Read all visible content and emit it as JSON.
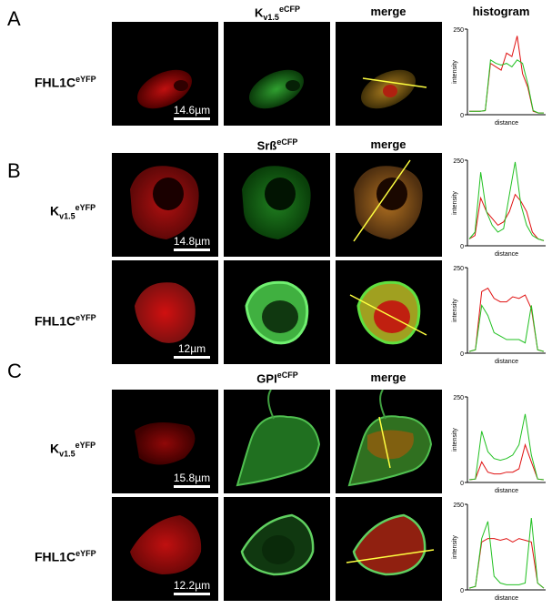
{
  "panels": {
    "a": {
      "letter": "A"
    },
    "b": {
      "letter": "B"
    },
    "c": {
      "letter": "C"
    }
  },
  "headers": {
    "a_col2": {
      "base": "K",
      "sub": "v1.5",
      "sup": "eCFP"
    },
    "a_col3": "merge",
    "a_col4": "histogram",
    "b_col2": {
      "base": "Srß",
      "sup": "eCFP"
    },
    "b_col3": "merge",
    "c_col2": {
      "base": "GPI",
      "sup": "eCFP"
    },
    "c_col3": "merge"
  },
  "rows": [
    {
      "label": {
        "base": "FHL1C",
        "sup": "eYFP"
      },
      "scale": "14.6µm"
    },
    {
      "label": {
        "base": "K",
        "sub": "v1.5",
        "sup": "eYFP"
      },
      "scale": "14.8µm"
    },
    {
      "label": {
        "base": "FHL1C",
        "sup": "eYFP"
      },
      "scale": "12µm"
    },
    {
      "label": {
        "base": "K",
        "sub": "v1.5",
        "sup": "eYFP"
      },
      "scale": "15.8µm"
    },
    {
      "label": {
        "base": "FHL1C",
        "sup": "eYFP"
      },
      "scale": "12.2µm"
    }
  ],
  "histogram_axes": {
    "ymax": "250",
    "ymin": "0",
    "ylabel": "intensity",
    "xlabel": "distance"
  },
  "colors": {
    "red_channel": "#e01010",
    "green_channel": "#20c020",
    "line": "#ffff40"
  },
  "chart_data": [
    {
      "type": "line",
      "ylabel": "intensity",
      "xlabel": "distance",
      "ylim": [
        0,
        250
      ],
      "series": [
        {
          "values": [
            10,
            10,
            10,
            12,
            150,
            140,
            130,
            180,
            170,
            230,
            120,
            80,
            10,
            5,
            5
          ]
        },
        {
          "values": [
            10,
            10,
            10,
            12,
            160,
            150,
            145,
            150,
            140,
            160,
            150,
            90,
            12,
            5,
            5
          ]
        }
      ]
    },
    {
      "type": "line",
      "ylabel": "intensity",
      "xlabel": "distance",
      "ylim": [
        0,
        250
      ],
      "series": [
        {
          "values": [
            20,
            30,
            140,
            100,
            80,
            60,
            70,
            100,
            150,
            130,
            100,
            40,
            20,
            15
          ]
        },
        {
          "values": [
            20,
            40,
            215,
            100,
            60,
            40,
            50,
            150,
            245,
            120,
            60,
            30,
            20,
            15
          ]
        }
      ]
    },
    {
      "type": "line",
      "ylabel": "intensity",
      "xlabel": "distance",
      "ylim": [
        0,
        250
      ],
      "series": [
        {
          "values": [
            5,
            10,
            180,
            190,
            160,
            150,
            150,
            165,
            160,
            170,
            130,
            10,
            5
          ]
        },
        {
          "values": [
            5,
            10,
            140,
            110,
            60,
            50,
            40,
            40,
            40,
            30,
            140,
            10,
            5
          ]
        }
      ]
    },
    {
      "type": "line",
      "ylabel": "intensity",
      "xlabel": "distance",
      "ylim": [
        0,
        250
      ],
      "series": [
        {
          "values": [
            8,
            10,
            60,
            30,
            25,
            25,
            30,
            30,
            40,
            110,
            60,
            10,
            8
          ]
        },
        {
          "values": [
            8,
            10,
            150,
            90,
            70,
            65,
            70,
            80,
            110,
            200,
            80,
            10,
            8
          ]
        }
      ]
    },
    {
      "type": "line",
      "ylabel": "intensity",
      "xlabel": "distance",
      "ylim": [
        0,
        250
      ],
      "series": [
        {
          "values": [
            5,
            10,
            140,
            150,
            150,
            145,
            150,
            140,
            150,
            145,
            140,
            20,
            5
          ]
        },
        {
          "values": [
            5,
            10,
            150,
            200,
            40,
            20,
            15,
            15,
            15,
            20,
            210,
            20,
            5
          ]
        }
      ]
    }
  ]
}
